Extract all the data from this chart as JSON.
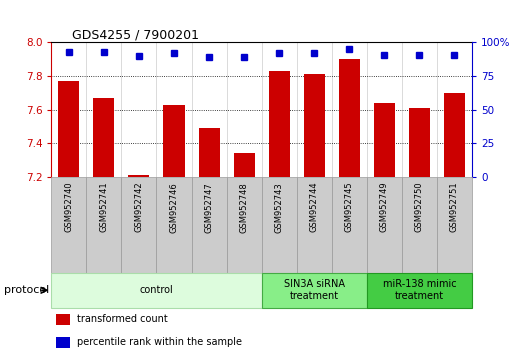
{
  "title": "GDS4255 / 7900201",
  "samples": [
    "GSM952740",
    "GSM952741",
    "GSM952742",
    "GSM952746",
    "GSM952747",
    "GSM952748",
    "GSM952743",
    "GSM952744",
    "GSM952745",
    "GSM952749",
    "GSM952750",
    "GSM952751"
  ],
  "bar_values": [
    7.77,
    7.67,
    7.21,
    7.63,
    7.49,
    7.34,
    7.83,
    7.81,
    7.9,
    7.64,
    7.61,
    7.7
  ],
  "percentile_values": [
    93,
    93,
    90,
    92,
    89,
    89,
    92,
    92,
    95,
    91,
    91,
    91
  ],
  "bar_color": "#cc0000",
  "dot_color": "#0000cc",
  "ylim_left": [
    7.2,
    8.0
  ],
  "yticks_left": [
    7.2,
    7.4,
    7.6,
    7.8,
    8.0
  ],
  "yticks_right": [
    0,
    25,
    50,
    75,
    100
  ],
  "grid_lines": [
    7.4,
    7.6,
    7.8
  ],
  "groups": [
    {
      "label": "control",
      "start": 0,
      "end": 6,
      "color": "#ddfcdd",
      "edge_color": "#aaddaa"
    },
    {
      "label": "SIN3A siRNA\ntreatment",
      "start": 6,
      "end": 9,
      "color": "#88ee88",
      "edge_color": "#44aa44"
    },
    {
      "label": "miR-138 mimic\ntreatment",
      "start": 9,
      "end": 12,
      "color": "#44cc44",
      "edge_color": "#229922"
    }
  ],
  "legend_items": [
    {
      "label": "transformed count",
      "color": "#cc0000"
    },
    {
      "label": "percentile rank within the sample",
      "color": "#0000cc"
    }
  ],
  "protocol_label": "protocol",
  "percent_label": "100%",
  "background_color": "#ffffff",
  "spine_color": "#000000",
  "grid_color": "#000000",
  "sample_box_color": "#cccccc",
  "sample_box_edge": "#999999"
}
